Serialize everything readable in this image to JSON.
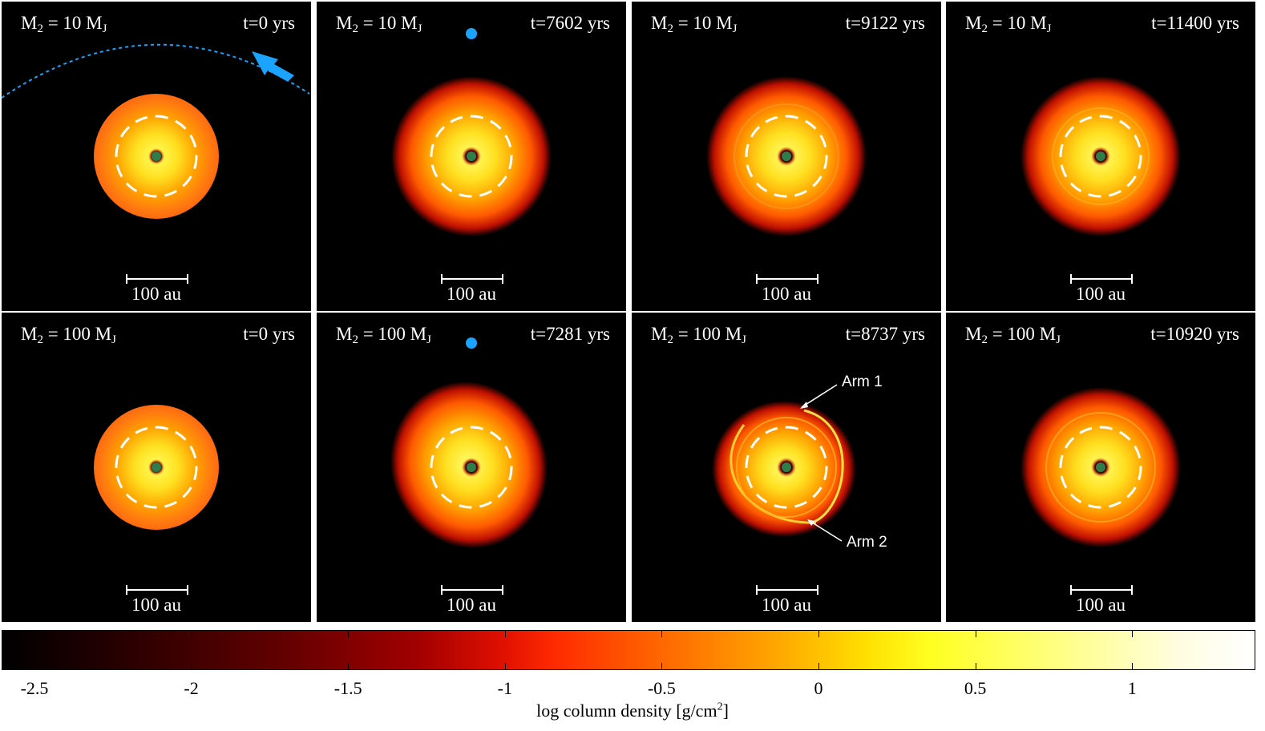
{
  "panels": [
    {
      "mass_prefix": "M",
      "mass_sub": "2",
      "mass_value": " = 10 M",
      "mass_unit_sub": "J",
      "time": "t=0 yrs",
      "scale": "100 au"
    },
    {
      "mass_prefix": "M",
      "mass_sub": "2",
      "mass_value": " = 10 M",
      "mass_unit_sub": "J",
      "time": "t=7602 yrs",
      "scale": "100 au"
    },
    {
      "mass_prefix": "M",
      "mass_sub": "2",
      "mass_value": " = 10 M",
      "mass_unit_sub": "J",
      "time": "t=9122 yrs",
      "scale": "100 au"
    },
    {
      "mass_prefix": "M",
      "mass_sub": "2",
      "mass_value": " = 10 M",
      "mass_unit_sub": "J",
      "time": "t=11400 yrs",
      "scale": "100 au"
    },
    {
      "mass_prefix": "M",
      "mass_sub": "2",
      "mass_value": " = 100 M",
      "mass_unit_sub": "J",
      "time": "t=0 yrs",
      "scale": "100 au"
    },
    {
      "mass_prefix": "M",
      "mass_sub": "2",
      "mass_value": " = 100 M",
      "mass_unit_sub": "J",
      "time": "t=7281 yrs",
      "scale": "100 au"
    },
    {
      "mass_prefix": "M",
      "mass_sub": "2",
      "mass_value": " = 100 M",
      "mass_unit_sub": "J",
      "time": "t=8737 yrs",
      "scale": "100 au"
    },
    {
      "mass_prefix": "M",
      "mass_sub": "2",
      "mass_value": " = 100 M",
      "mass_unit_sub": "J",
      "time": "t=10920 yrs",
      "scale": "100 au"
    }
  ],
  "annotations": {
    "arm1": "Arm 1",
    "arm2": "Arm 2"
  },
  "colorbar": {
    "ticks": [
      "-2.5",
      "-2",
      "-1.5",
      "-1",
      "-0.5",
      "0",
      "0.5",
      "1"
    ],
    "title_main": "log column density [g/cm",
    "title_sup": "2",
    "title_end": "]"
  },
  "colors": {
    "perturber": "#1aa3ff",
    "star": "#2e7d4a",
    "dashed_ring": "#ffffff"
  }
}
